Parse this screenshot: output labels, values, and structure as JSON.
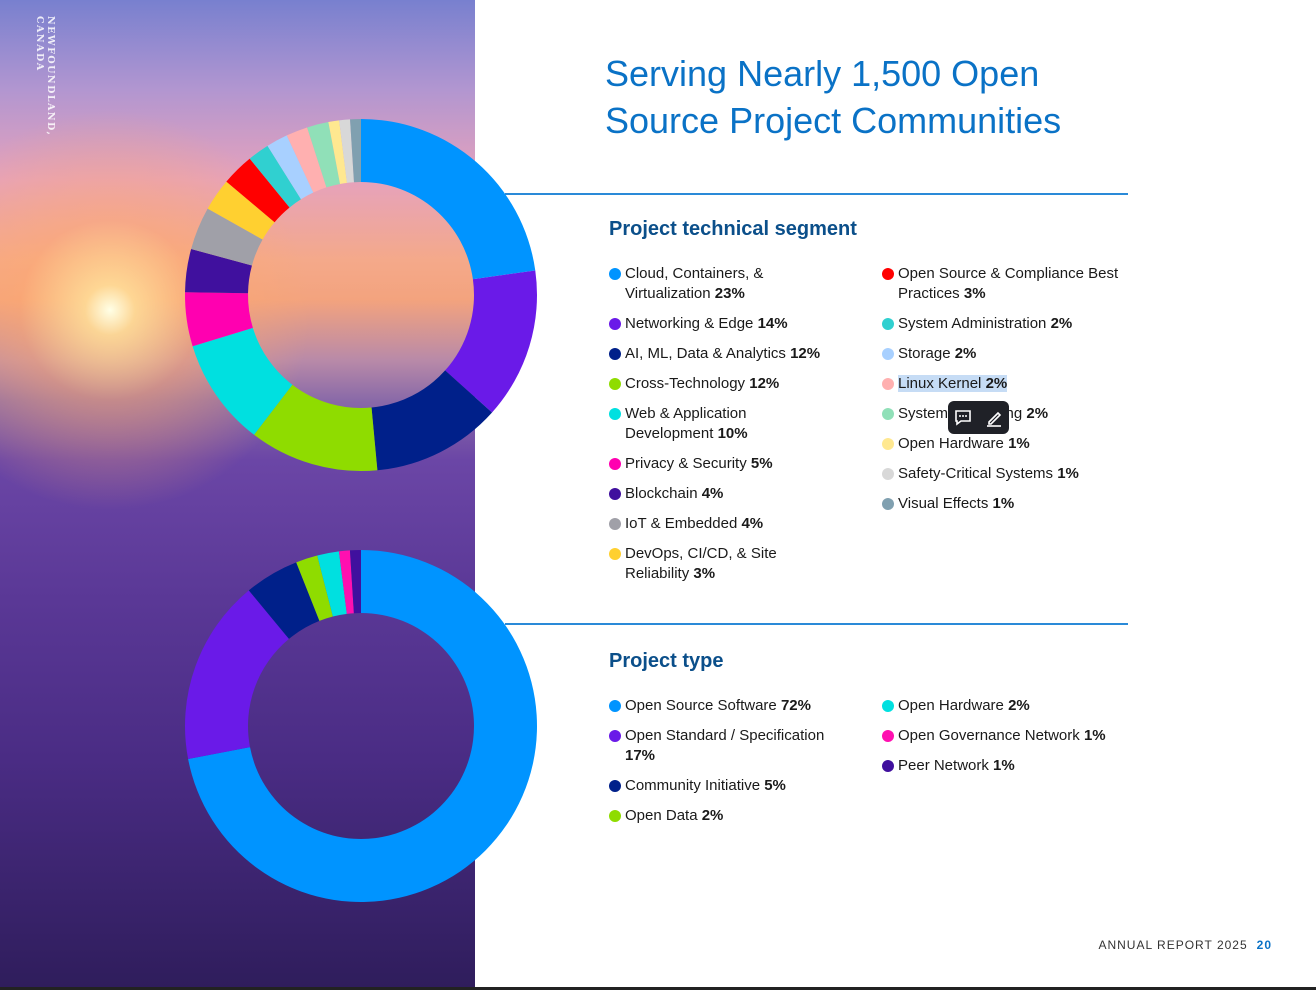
{
  "sidebar_caption": "NEWFOUNDLAND, CANADA",
  "title": "Serving Nearly 1,500 Open Source Project Communities",
  "chart_data": [
    {
      "type": "donut",
      "title": "Project technical segment",
      "categories": [
        "Cloud, Containers, & Virtualization",
        "Networking & Edge",
        "AI, ML, Data & Analytics",
        "Cross-Technology",
        "Web & Application Development",
        "Privacy & Security",
        "Blockchain",
        "IoT & Embedded",
        "DevOps, CI/CD, & Site Reliability",
        "Open Source & Compliance Best Practices",
        "System Administration",
        "Storage",
        "Linux Kernel",
        "System Monitoring",
        "Open Hardware",
        "Safety-Critical Systems",
        "Visual Effects"
      ],
      "values": [
        23,
        14,
        12,
        12,
        10,
        5,
        4,
        4,
        3,
        3,
        2,
        2,
        2,
        2,
        1,
        1,
        1
      ],
      "value_labels": [
        "23%",
        "14%",
        "12%",
        "12%",
        "10%",
        "5%",
        "4%",
        "4%",
        "3%",
        "3%",
        "2%",
        "2%",
        "2%",
        "2%",
        "1%",
        "1%",
        "1%"
      ],
      "colors": [
        "#0094ff",
        "#6a1ae8",
        "#00208a",
        "#8fdc00",
        "#00e0e0",
        "#ff00b0",
        "#40109e",
        "#a0a0a8",
        "#ffd030",
        "#ff0000",
        "#30d0d0",
        "#a8d0ff",
        "#ffb0b0",
        "#90e0b8",
        "#ffe890",
        "#d8d8d8",
        "#80a0b0"
      ]
    },
    {
      "type": "donut",
      "title": "Project type",
      "categories": [
        "Open Source Software",
        "Open Standard / Specification",
        "Community Initiative",
        "Open Data",
        "Open Hardware",
        "Open Governance Network",
        "Peer Network"
      ],
      "values": [
        72,
        17,
        5,
        2,
        2,
        1,
        1
      ],
      "value_labels": [
        "72%",
        "17%",
        "5%",
        "2%",
        "2%",
        "1%",
        "1%"
      ],
      "colors": [
        "#0094ff",
        "#6a1ae8",
        "#00208a",
        "#8fdc00",
        "#00e0e0",
        "#ff10b0",
        "#40109e"
      ]
    }
  ],
  "footer": {
    "label": "ANNUAL REPORT 2025",
    "page": "20"
  }
}
